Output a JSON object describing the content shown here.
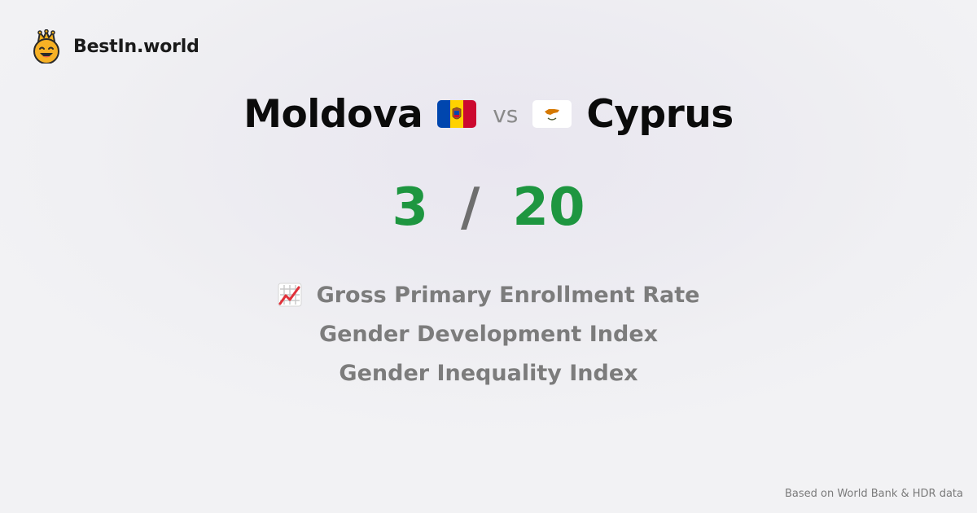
{
  "brand": {
    "name": "BestIn.world",
    "icon": "crowned-smiley-icon"
  },
  "comparison": {
    "left_country": "Moldova",
    "left_flag": "moldova-flag-icon",
    "vs_label": "vs",
    "right_country": "Cyprus",
    "right_flag": "cyprus-flag-icon"
  },
  "score": {
    "left": "3",
    "separator": "/",
    "right": "20",
    "color": "#1e9640"
  },
  "metrics": {
    "icon": "chart-increasing-icon",
    "items": [
      "Gross Primary Enrollment Rate",
      "Gender Development Index",
      "Gender Inequality Index"
    ]
  },
  "footer": {
    "source": "Based on World Bank & HDR data"
  }
}
